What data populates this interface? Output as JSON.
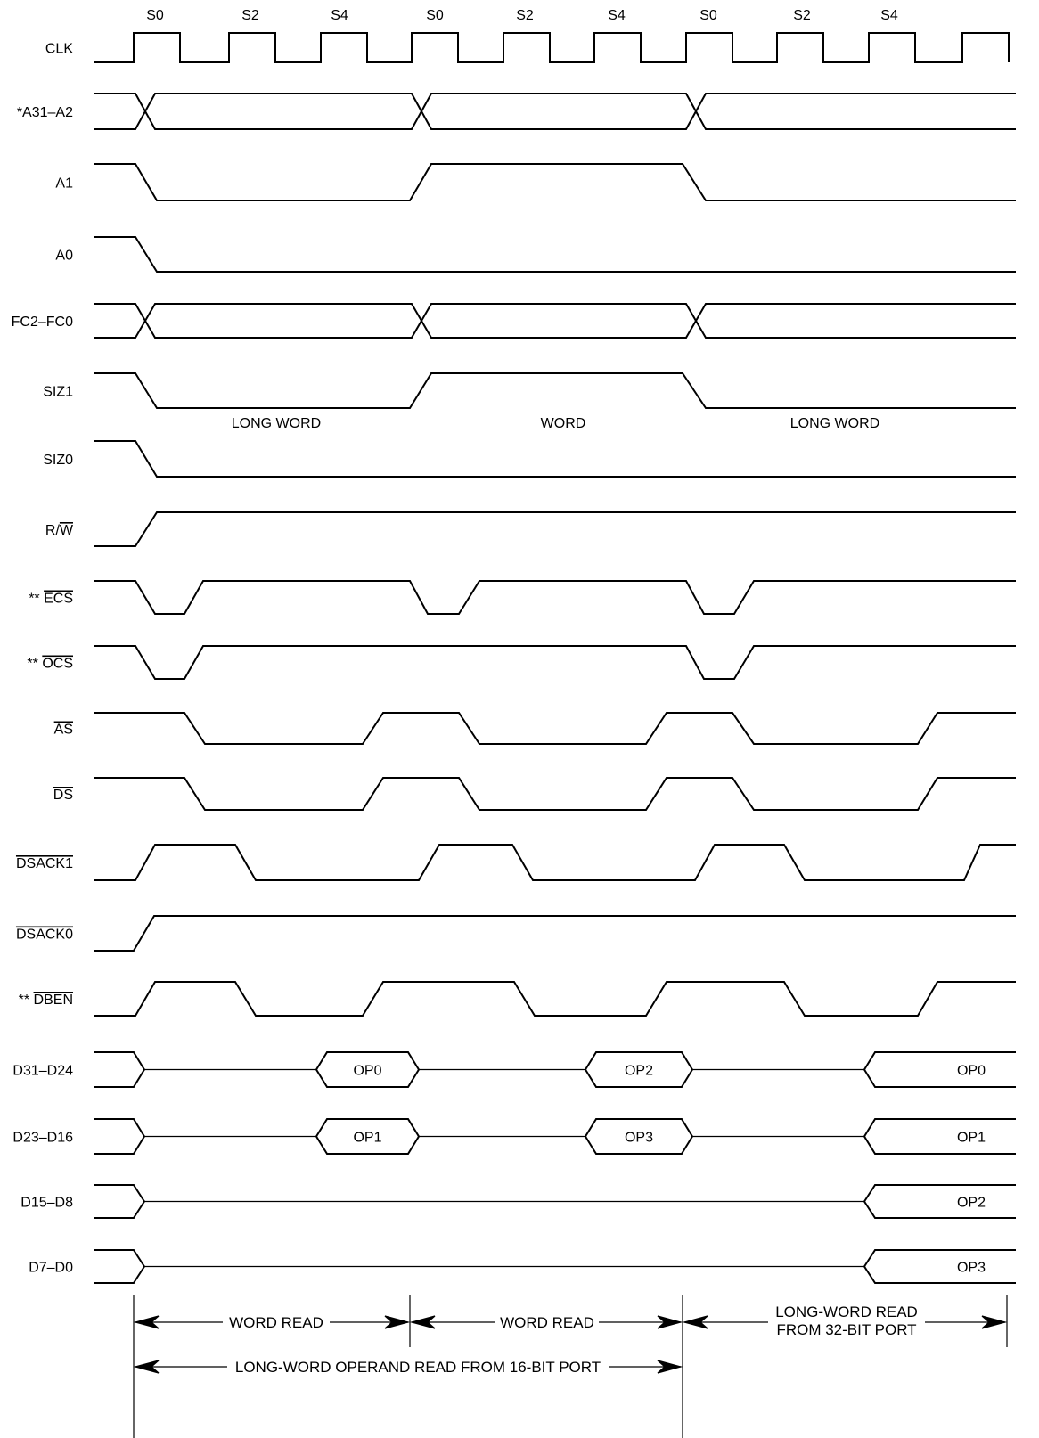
{
  "clock_states": [
    "S0",
    "S2",
    "S4",
    "S0",
    "S2",
    "S4",
    "S0",
    "S2",
    "S4"
  ],
  "signals": [
    {
      "id": "clk",
      "prefix": "",
      "name": "CLK",
      "overbar": false
    },
    {
      "id": "a31a2",
      "prefix": "",
      "name": "*A31–A2",
      "overbar": false
    },
    {
      "id": "a1",
      "prefix": "",
      "name": "A1",
      "overbar": false
    },
    {
      "id": "a0",
      "prefix": "",
      "name": "A0",
      "overbar": false
    },
    {
      "id": "fc",
      "prefix": "",
      "name": "FC2–FC0",
      "overbar": false
    },
    {
      "id": "siz1",
      "prefix": "",
      "name": "SIZ1",
      "overbar": false
    },
    {
      "id": "siz0",
      "prefix": "",
      "name": "SIZ0",
      "overbar": false
    },
    {
      "id": "rw",
      "prefix": "R/",
      "name": "W",
      "overbar": true
    },
    {
      "id": "ecs",
      "prefix": "** ",
      "name": "ECS",
      "overbar": true
    },
    {
      "id": "ocs",
      "prefix": "** ",
      "name": "OCS",
      "overbar": true
    },
    {
      "id": "as",
      "prefix": "",
      "name": "AS",
      "overbar": true
    },
    {
      "id": "ds",
      "prefix": "",
      "name": "DS",
      "overbar": true
    },
    {
      "id": "dsack1",
      "prefix": "",
      "name": "DSACK1",
      "overbar": true
    },
    {
      "id": "dsack0",
      "prefix": "",
      "name": "DSACK0",
      "overbar": true
    },
    {
      "id": "dben",
      "prefix": "** ",
      "name": "DBEN",
      "overbar": true
    },
    {
      "id": "d3124",
      "prefix": "",
      "name": "D31–D24",
      "overbar": false
    },
    {
      "id": "d2316",
      "prefix": "",
      "name": "D23–D16",
      "overbar": false
    },
    {
      "id": "d158",
      "prefix": "",
      "name": "D15–D8",
      "overbar": false
    },
    {
      "id": "d70",
      "prefix": "",
      "name": "D7–D0",
      "overbar": false
    }
  ],
  "size_labels": [
    "LONG WORD",
    "WORD",
    "LONG WORD"
  ],
  "data_labels": {
    "d3124": [
      "OP0",
      "OP2",
      "OP0"
    ],
    "d2316": [
      "OP1",
      "OP3",
      "OP1"
    ],
    "d158": [
      "OP2"
    ],
    "d70": [
      "OP3"
    ]
  },
  "annotations": {
    "word_read_1": "WORD READ",
    "word_read_2": "WORD READ",
    "long_word_read_line1": "LONG-WORD READ",
    "long_word_read_line2": "FROM 32-BIT PORT",
    "long_word_operand": "LONG-WORD OPERAND READ FROM 16-BIT PORT"
  }
}
